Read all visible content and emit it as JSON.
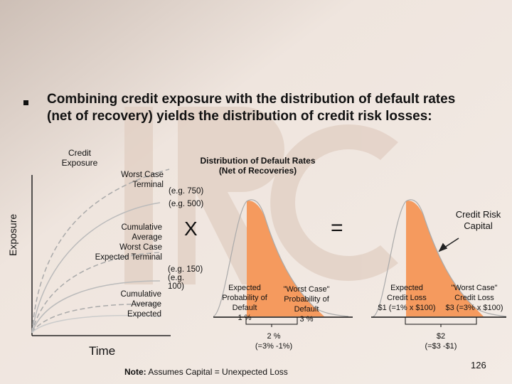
{
  "colors": {
    "accent": "#f59a5e",
    "background": "#eee3dc",
    "watermark": "#e0cec2"
  },
  "slide": {
    "bullet_icon": "square-bullet",
    "title_line1": "Combining credit exposure with the distribution of default rates",
    "title_line2": "(net of recovery) yields the distribution of credit risk losses:",
    "page_number": "126",
    "note_label": "Note:",
    "note_text": "Assumes Capital = Unexpected Loss"
  },
  "exposure_chart": {
    "title_line1": "Credit",
    "title_line2": "Exposure",
    "y_axis_label": "Exposure",
    "x_axis_label": "Time",
    "curves": [
      {
        "label_lines": [
          "Worst Case",
          "Terminal"
        ]
      },
      {
        "label_lines": [
          "Cumulative",
          "Average",
          "Worst Case",
          "Expected Terminal"
        ]
      },
      {
        "label_lines": [
          "Cumulative",
          "Average",
          "Expected"
        ]
      }
    ]
  },
  "default_rate_chart": {
    "title_line1": "Distribution of Default Rates",
    "title_line2": "(Net of Recoveries)",
    "eg_750": "(e.g. 750)",
    "eg_500": "(e.g. 500)",
    "eg_150_lines": [
      "(e.g. 150)",
      "(e.g.",
      "100)"
    ],
    "expected_lines": [
      "Expected",
      "Probability of",
      "Default",
      "1 %"
    ],
    "worst_lines": [
      "\"Worst Case\"",
      "Probability of",
      "Default",
      "3 %"
    ],
    "difference_lines": [
      "2 %",
      "(=3% -1%)"
    ]
  },
  "operators": {
    "multiply": "X",
    "equals": "="
  },
  "capital_chart": {
    "title_lines": [
      "Credit Risk",
      "Capital"
    ],
    "expected_lines": [
      "Expected",
      "Credit Loss",
      "$1 (=1% x $100)"
    ],
    "worst_lines": [
      "\"Worst Case\"",
      "Credit Loss",
      "$3 (=3% x $100)"
    ],
    "difference_lines": [
      "$2",
      "(=$3 -$1)"
    ]
  }
}
